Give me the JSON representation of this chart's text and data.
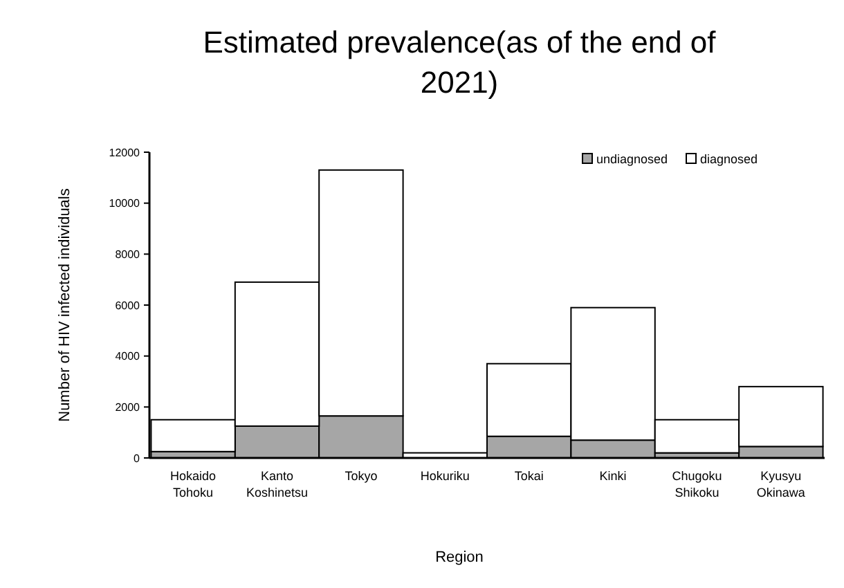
{
  "chart_data": {
    "type": "bar",
    "title": "Estimated prevalence(as of the end of 2021)",
    "xlabel": "Region",
    "ylabel": "Number of HIV infected individuals",
    "categories": [
      "Hokaido Tohoku",
      "Kanto Koshinetsu",
      "Tokyo",
      "Hokuriku",
      "Tokai",
      "Kinki",
      "Chugoku Shikoku",
      "Kyusyu Okinawa"
    ],
    "stacked": true,
    "series": [
      {
        "name": "undiagnosed",
        "color": "#a6a6a6",
        "values": [
          250,
          1250,
          1650,
          null,
          850,
          700,
          200,
          450
        ]
      },
      {
        "name": "diagnosed",
        "color": "#ffffff",
        "values": [
          1250,
          5650,
          9650,
          200,
          2850,
          5200,
          1300,
          2350
        ]
      }
    ],
    "ylim": [
      0,
      12000
    ],
    "yticks": [
      0,
      2000,
      4000,
      6000,
      8000,
      10000,
      12000
    ],
    "grid": false,
    "legend": "top right"
  }
}
